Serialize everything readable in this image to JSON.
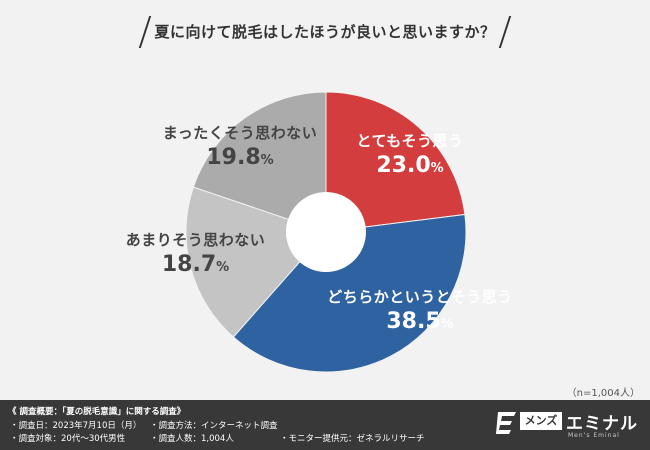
{
  "title": "夏に向けて脱毛はしたほうが良いと思いますか？",
  "chart_data": {
    "type": "pie",
    "style": "donut",
    "slices": [
      {
        "label": "とてもそう思う",
        "value": 23.0,
        "value_text": "23.0",
        "color": "#d43d3d"
      },
      {
        "label": "どちらかというとそう思う",
        "value": 38.5,
        "value_text": "38.5",
        "color": "#2f62a0"
      },
      {
        "label": "あまりそう思わない",
        "value": 18.7,
        "value_text": "18.7",
        "color": "#c4c4c4"
      },
      {
        "label": "まったくそう思わない",
        "value": 19.8,
        "value_text": "19.8",
        "color": "#ababab"
      }
    ],
    "unit": "%"
  },
  "sample_size": "（n=1,004人）",
  "footer": {
    "title": "《 調査概要：「夏の脱毛意識」に関する調査》",
    "items": [
      "・調査日：2023年7月10日（月）",
      "・調査方法：インターネット調査",
      "・調査対象：20代～30代男性",
      "・調査人数：1,004人",
      "・モニター提供元：ゼネラルリサーチ"
    ]
  },
  "logo": {
    "box_text": "メンズ",
    "word": "エミナル",
    "sub": "Men's Eminal"
  }
}
